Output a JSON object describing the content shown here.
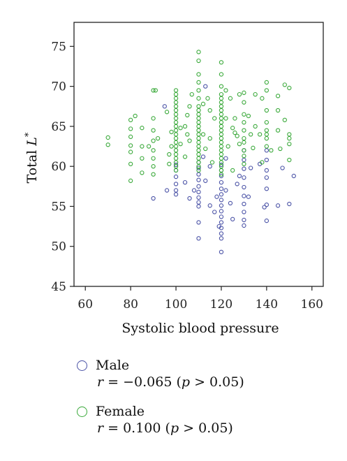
{
  "chart_data": {
    "type": "scatter",
    "xlabel": "Systolic blood pressure",
    "ylabel_prefix": "Total ",
    "ylabel_var": "L",
    "ylabel_sup": "*",
    "xlim": [
      55,
      165
    ],
    "ylim": [
      45,
      78
    ],
    "xticks": [
      60,
      80,
      100,
      120,
      140,
      160
    ],
    "yticks": [
      45,
      50,
      55,
      60,
      65,
      70,
      75
    ],
    "series": [
      {
        "name": "Male",
        "stat_r": "r",
        "stat_eq": " = −0.065 (",
        "stat_p": "p",
        "stat_rest": " > 0.05)",
        "color": "#4a52a6",
        "points": [
          [
            95,
            67.5
          ],
          [
            100,
            60.2
          ],
          [
            100,
            59.5
          ],
          [
            100,
            58.7
          ],
          [
            100,
            57.8
          ],
          [
            100,
            57.0
          ],
          [
            100,
            56.5
          ],
          [
            90,
            56.0
          ],
          [
            96,
            57.0
          ],
          [
            104,
            58.0
          ],
          [
            110,
            60.5
          ],
          [
            110,
            59.8
          ],
          [
            110,
            59.0
          ],
          [
            110,
            58.3
          ],
          [
            110,
            57.5
          ],
          [
            110,
            56.8
          ],
          [
            110,
            56.1
          ],
          [
            110,
            55.5
          ],
          [
            110,
            55.0
          ],
          [
            110,
            53.0
          ],
          [
            110,
            51.0
          ],
          [
            108,
            57.0
          ],
          [
            112,
            61.2
          ],
          [
            113,
            58.2
          ],
          [
            106,
            56.0
          ],
          [
            120,
            60.2
          ],
          [
            120,
            59.5
          ],
          [
            120,
            58.8
          ],
          [
            120,
            58.0
          ],
          [
            120,
            57.2
          ],
          [
            120,
            56.5
          ],
          [
            120,
            55.8
          ],
          [
            120,
            55.1
          ],
          [
            120,
            54.4
          ],
          [
            120,
            53.7
          ],
          [
            120,
            53.0
          ],
          [
            120,
            52.3
          ],
          [
            120,
            51.6
          ],
          [
            120,
            51.0
          ],
          [
            120,
            49.3
          ],
          [
            118,
            56.2
          ],
          [
            122,
            57.0
          ],
          [
            117,
            54.3
          ],
          [
            124,
            55.4
          ],
          [
            125,
            53.4
          ],
          [
            115,
            60.0
          ],
          [
            115,
            55.1
          ],
          [
            122,
            61.0
          ],
          [
            119,
            52.5
          ],
          [
            113,
            70.0
          ],
          [
            127,
            57.8
          ],
          [
            130,
            62.0
          ],
          [
            130,
            60.8
          ],
          [
            130,
            59.7
          ],
          [
            130,
            58.6
          ],
          [
            130,
            57.4
          ],
          [
            130,
            56.3
          ],
          [
            130,
            55.3
          ],
          [
            130,
            54.3
          ],
          [
            130,
            53.3
          ],
          [
            130,
            52.6
          ],
          [
            128,
            58.8
          ],
          [
            132,
            56.2
          ],
          [
            133,
            59.8
          ],
          [
            137,
            60.3
          ],
          [
            140,
            62.0
          ],
          [
            140,
            60.8
          ],
          [
            140,
            59.5
          ],
          [
            140,
            58.6
          ],
          [
            140,
            57.2
          ],
          [
            140,
            55.2
          ],
          [
            140,
            53.2
          ],
          [
            139,
            54.9
          ],
          [
            145,
            55.1
          ],
          [
            147,
            59.8
          ],
          [
            150,
            55.3
          ],
          [
            152,
            58.8
          ]
        ]
      },
      {
        "name": "Female",
        "stat_r": "r",
        "stat_eq": " = 0.100 (",
        "stat_p": "p",
        "stat_rest": " > 0.05)",
        "color": "#3aa93a",
        "points": [
          [
            70,
            63.6
          ],
          [
            70,
            62.7
          ],
          [
            80,
            65.8
          ],
          [
            80,
            64.7
          ],
          [
            80,
            63.7
          ],
          [
            80,
            62.6
          ],
          [
            80,
            61.8
          ],
          [
            80,
            60.3
          ],
          [
            80,
            58.2
          ],
          [
            82,
            66.3
          ],
          [
            85,
            64.8
          ],
          [
            85,
            62.5
          ],
          [
            85,
            61.0
          ],
          [
            85,
            59.2
          ],
          [
            88,
            62.5
          ],
          [
            90,
            69.5
          ],
          [
            90,
            66.0
          ],
          [
            90,
            64.5
          ],
          [
            90,
            63.2
          ],
          [
            90,
            62.0
          ],
          [
            90,
            61.0
          ],
          [
            90,
            60.0
          ],
          [
            90,
            59.0
          ],
          [
            91,
            69.5
          ],
          [
            92,
            63.5
          ],
          [
            96,
            66.8
          ],
          [
            97,
            60.3
          ],
          [
            98,
            64.3
          ],
          [
            98,
            62.5
          ],
          [
            97,
            61.5
          ],
          [
            100,
            69.5
          ],
          [
            100,
            69.0
          ],
          [
            100,
            68.5
          ],
          [
            100,
            68.0
          ],
          [
            100,
            67.5
          ],
          [
            100,
            67.0
          ],
          [
            100,
            66.5
          ],
          [
            100,
            66.0
          ],
          [
            100,
            65.5
          ],
          [
            100,
            65.0
          ],
          [
            100,
            64.5
          ],
          [
            100,
            64.0
          ],
          [
            100,
            63.5
          ],
          [
            100,
            63.0
          ],
          [
            100,
            62.5
          ],
          [
            100,
            62.0
          ],
          [
            100,
            61.5
          ],
          [
            100,
            61.0
          ],
          [
            100,
            60.5
          ],
          [
            100,
            60.0
          ],
          [
            100,
            59.5
          ],
          [
            102,
            64.8
          ],
          [
            102,
            62.8
          ],
          [
            104,
            65.0
          ],
          [
            105,
            66.4
          ],
          [
            105,
            64.0
          ],
          [
            104,
            61.2
          ],
          [
            106,
            63.2
          ],
          [
            107,
            69.0
          ],
          [
            106,
            67.5
          ],
          [
            110,
            74.3
          ],
          [
            110,
            73.2
          ],
          [
            110,
            71.5
          ],
          [
            110,
            70.5
          ],
          [
            110,
            69.5
          ],
          [
            110,
            68.5
          ],
          [
            110,
            67.5
          ],
          [
            110,
            67.0
          ],
          [
            110,
            66.5
          ],
          [
            110,
            66.0
          ],
          [
            110,
            65.5
          ],
          [
            110,
            65.0
          ],
          [
            110,
            64.5
          ],
          [
            110,
            64.0
          ],
          [
            110,
            63.5
          ],
          [
            110,
            63.0
          ],
          [
            110,
            62.5
          ],
          [
            110,
            62.0
          ],
          [
            110,
            61.5
          ],
          [
            110,
            61.0
          ],
          [
            110,
            60.5
          ],
          [
            110,
            60.0
          ],
          [
            110,
            59.5
          ],
          [
            112,
            67.8
          ],
          [
            112,
            64.0
          ],
          [
            113,
            62.2
          ],
          [
            114,
            68.5
          ],
          [
            115,
            67.0
          ],
          [
            115,
            63.5
          ],
          [
            116,
            60.5
          ],
          [
            117,
            66.0
          ],
          [
            120,
            73.0
          ],
          [
            120,
            71.5
          ],
          [
            120,
            70.0
          ],
          [
            120,
            69.0
          ],
          [
            120,
            68.5
          ],
          [
            120,
            68.0
          ],
          [
            120,
            67.5
          ],
          [
            120,
            67.0
          ],
          [
            120,
            66.5
          ],
          [
            120,
            66.0
          ],
          [
            120,
            65.5
          ],
          [
            120,
            65.0
          ],
          [
            120,
            64.5
          ],
          [
            120,
            64.0
          ],
          [
            120,
            63.5
          ],
          [
            120,
            63.0
          ],
          [
            120,
            62.5
          ],
          [
            120,
            62.0
          ],
          [
            120,
            61.5
          ],
          [
            120,
            61.0
          ],
          [
            120,
            60.5
          ],
          [
            120,
            60.0
          ],
          [
            120,
            59.5
          ],
          [
            120,
            59.0
          ],
          [
            122,
            69.5
          ],
          [
            122,
            66.0
          ],
          [
            123,
            62.5
          ],
          [
            124,
            68.5
          ],
          [
            125,
            64.8
          ],
          [
            125,
            59.5
          ],
          [
            126,
            66.0
          ],
          [
            127,
            63.8
          ],
          [
            128,
            62.8
          ],
          [
            128,
            69.0
          ],
          [
            126,
            64.2
          ],
          [
            130,
            69.2
          ],
          [
            130,
            68.0
          ],
          [
            130,
            66.5
          ],
          [
            130,
            65.5
          ],
          [
            130,
            64.5
          ],
          [
            130,
            63.5
          ],
          [
            130,
            63.0
          ],
          [
            130,
            62.0
          ],
          [
            130,
            61.3
          ],
          [
            130,
            60.3
          ],
          [
            132,
            66.3
          ],
          [
            133,
            64.0
          ],
          [
            134,
            62.3
          ],
          [
            135,
            65.0
          ],
          [
            135,
            69.0
          ],
          [
            138,
            68.5
          ],
          [
            137,
            64.0
          ],
          [
            138,
            60.5
          ],
          [
            140,
            70.5
          ],
          [
            140,
            69.5
          ],
          [
            140,
            67.0
          ],
          [
            140,
            65.5
          ],
          [
            140,
            64.5
          ],
          [
            140,
            64.0
          ],
          [
            140,
            63.5
          ],
          [
            140,
            62.5
          ],
          [
            142,
            62.0
          ],
          [
            145,
            68.8
          ],
          [
            145,
            67.0
          ],
          [
            146,
            62.2
          ],
          [
            145,
            64.5
          ],
          [
            150,
            69.8
          ],
          [
            150,
            64.0
          ],
          [
            150,
            63.5
          ],
          [
            150,
            62.8
          ],
          [
            150,
            60.8
          ],
          [
            148,
            65.8
          ],
          [
            148,
            70.2
          ]
        ]
      }
    ]
  }
}
